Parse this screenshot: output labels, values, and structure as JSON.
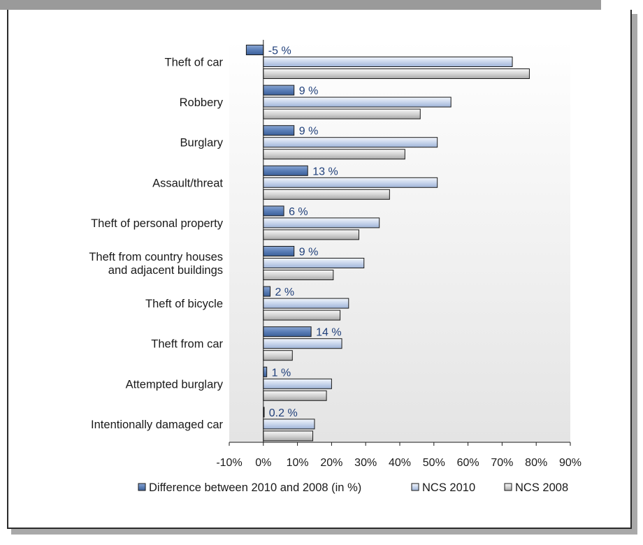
{
  "chart_data": {
    "type": "bar",
    "orientation": "horizontal",
    "categories": [
      "Theft of car",
      "Robbery",
      "Burglary",
      "Assault/threat",
      "Theft of personal property",
      "Theft from country houses and adjacent buildings",
      "Theft of bicycle",
      "Theft from car",
      "Attempted burglary",
      "Intentionally damaged car"
    ],
    "category_lines": [
      [
        "Theft of car"
      ],
      [
        "Robbery"
      ],
      [
        "Burglary"
      ],
      [
        "Assault/threat"
      ],
      [
        "Theft of personal property"
      ],
      [
        "Theft from country houses",
        "and adjacent buildings"
      ],
      [
        "Theft of bicycle"
      ],
      [
        "Theft from car"
      ],
      [
        "Attempted burglary"
      ],
      [
        "Intentionally damaged car"
      ]
    ],
    "series": [
      {
        "name": "Difference between 2010 and 2008 (in %)",
        "values": [
          -5,
          9,
          9,
          13,
          6,
          9,
          2,
          14,
          1,
          0.2
        ],
        "labels": [
          "-5 %",
          "9 %",
          "9 %",
          "13 %",
          "6 %",
          "9 %",
          "2 %",
          "14 %",
          "1 %",
          "0.2 %"
        ],
        "color": "#5b7fb8"
      },
      {
        "name": "NCS 2010",
        "values": [
          73,
          55,
          51,
          51,
          34,
          29.5,
          25,
          23,
          20,
          15
        ],
        "color": "#c9d6ec"
      },
      {
        "name": "NCS 2008",
        "values": [
          78,
          46,
          41.5,
          37,
          28,
          20.5,
          22.5,
          8.5,
          18.5,
          14.5
        ],
        "color": "#cfcfcf"
      }
    ],
    "xlim": [
      -10,
      90
    ],
    "xticks": [
      -10,
      0,
      10,
      20,
      30,
      40,
      50,
      60,
      70,
      80,
      90
    ],
    "xtick_labels": [
      "-10%",
      "0%",
      "10%",
      "20%",
      "30%",
      "40%",
      "50%",
      "60%",
      "70%",
      "80%",
      "90%"
    ],
    "legend_position": "bottom",
    "grid": false,
    "colors": {
      "plot_background": "#ececec",
      "label_text": "#1f3f7a",
      "bar_outline": "#1a1a1a"
    }
  }
}
